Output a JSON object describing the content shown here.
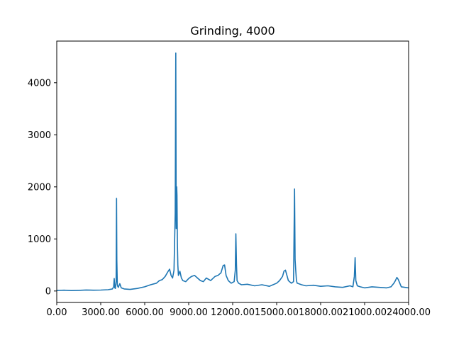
{
  "chart_data": {
    "type": "line",
    "title": "Grinding, 4000",
    "xlabel": "",
    "ylabel": "",
    "xlim": [
      0,
      24000
    ],
    "ylim": [
      -220,
      4800
    ],
    "xticks": [
      0,
      3000,
      6000,
      9000,
      12000,
      15000,
      18000,
      21000,
      24000
    ],
    "xtick_labels": [
      "0.00",
      "3000.00",
      "6000.00",
      "9000.00",
      "12000.00",
      "15000.00",
      "18000.00",
      "21000.00",
      "24000.00"
    ],
    "yticks": [
      0,
      1000,
      2000,
      3000,
      4000
    ],
    "ytick_labels": [
      "0",
      "1000",
      "2000",
      "3000",
      "4000"
    ],
    "grid": false,
    "series": [
      {
        "color": "#1f77b4",
        "x": [
          0,
          500,
          1000,
          1500,
          2000,
          2500,
          3000,
          3500,
          3800,
          3880,
          3920,
          3960,
          4000,
          4050,
          4080,
          4100,
          4130,
          4160,
          4200,
          4300,
          4400,
          4600,
          5000,
          5500,
          6000,
          6400,
          6800,
          7000,
          7200,
          7400,
          7600,
          7700,
          7800,
          7900,
          8000,
          8080,
          8120,
          8150,
          8180,
          8200,
          8230,
          8260,
          8300,
          8400,
          8500,
          8600,
          8800,
          9000,
          9200,
          9400,
          9600,
          9800,
          10000,
          10200,
          10500,
          10800,
          11000,
          11200,
          11350,
          11450,
          11550,
          11700,
          11900,
          12100,
          12180,
          12220,
          12260,
          12300,
          12400,
          12600,
          13000,
          13500,
          14000,
          14500,
          15000,
          15200,
          15400,
          15500,
          15600,
          15800,
          16000,
          16150,
          16220,
          16260,
          16300,
          16350,
          16400,
          16500,
          16700,
          17000,
          17500,
          18000,
          18500,
          19000,
          19500,
          20000,
          20200,
          20300,
          20350,
          20400,
          20500,
          20700,
          21000,
          21500,
          22000,
          22500,
          22800,
          23000,
          23100,
          23200,
          23300,
          23500,
          24000
        ],
        "y": [
          10,
          15,
          8,
          12,
          20,
          15,
          18,
          25,
          40,
          80,
          240,
          60,
          50,
          180,
          1780,
          600,
          120,
          90,
          70,
          140,
          60,
          40,
          30,
          50,
          80,
          120,
          150,
          200,
          220,
          280,
          380,
          420,
          300,
          250,
          400,
          1500,
          4570,
          1200,
          2000,
          1840,
          900,
          500,
          300,
          380,
          250,
          200,
          180,
          240,
          280,
          300,
          250,
          200,
          180,
          250,
          200,
          280,
          300,
          350,
          490,
          500,
          300,
          200,
          150,
          180,
          400,
          1100,
          500,
          200,
          150,
          120,
          130,
          100,
          120,
          90,
          150,
          200,
          280,
          380,
          400,
          200,
          150,
          180,
          1960,
          600,
          400,
          200,
          150,
          140,
          120,
          100,
          110,
          90,
          100,
          80,
          70,
          100,
          80,
          280,
          640,
          200,
          100,
          80,
          60,
          80,
          70,
          60,
          80,
          150,
          200,
          260,
          220,
          80,
          60
        ]
      }
    ]
  }
}
